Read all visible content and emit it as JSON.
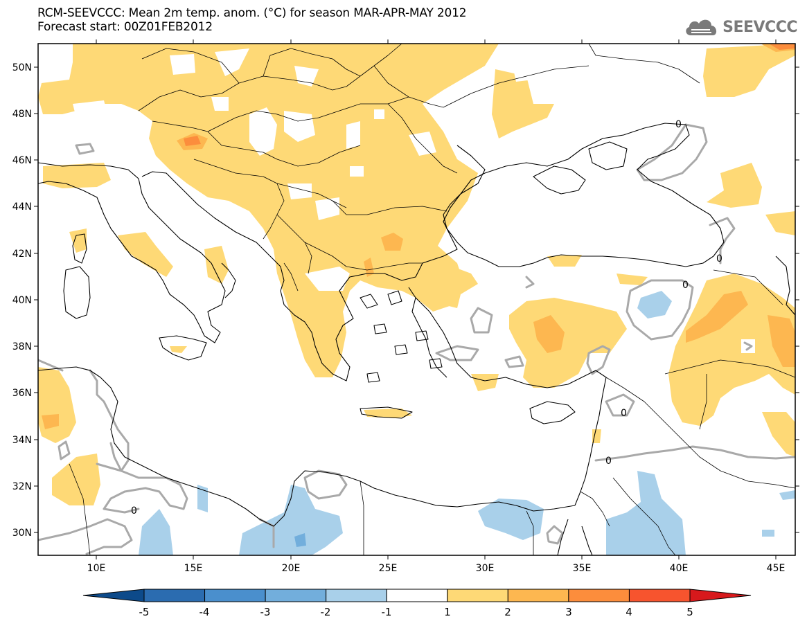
{
  "title": {
    "line1": "RCM-SEEVCCC: Mean 2m temp. anom. (°C) for season MAR-APR-MAY 2012",
    "line2": "Forecast start: 00Z01FEB2012"
  },
  "logo": {
    "text": "SEEVCCC",
    "icon": "cloud-icon",
    "color": "#7a7a7a"
  },
  "lat_labels": [
    "50N",
    "48N",
    "46N",
    "44N",
    "42N",
    "40N",
    "38N",
    "36N",
    "34N",
    "32N",
    "30N"
  ],
  "lon_labels": [
    "10E",
    "15E",
    "20E",
    "25E",
    "30E",
    "35E",
    "40E",
    "45E"
  ],
  "contour_label": "0",
  "colorbar": {
    "labels": [
      "-5",
      "-4",
      "-3",
      "-2",
      "-1",
      "1",
      "2",
      "3",
      "4",
      "5"
    ],
    "colors": [
      "#0d4a8a",
      "#2b6cb0",
      "#4a8fcd",
      "#72aedc",
      "#a9d0ea",
      "#ffffff",
      "#fed976",
      "#fdb750",
      "#fc8d3c",
      "#f7542e",
      "#d7191c"
    ]
  },
  "chart_data": {
    "type": "heatmap",
    "variable": "Mean 2m temp. anom. (°C)",
    "season": "MAR-APR-MAY 2012",
    "forecast_start": "00Z01FEB2012",
    "lon_range": [
      7,
      46
    ],
    "lat_range": [
      29,
      51
    ],
    "levels": [
      -5,
      -4,
      -3,
      -2,
      -1,
      1,
      2,
      3,
      4,
      5
    ],
    "colors": {
      "neutral": "#ffffff",
      "warm1": "#fed976",
      "warm2": "#fdb750",
      "warm3": "#fc8d3c",
      "warm4": "#f7542e",
      "cool1": "#a9d0ea",
      "cool2": "#72aedc"
    }
  }
}
